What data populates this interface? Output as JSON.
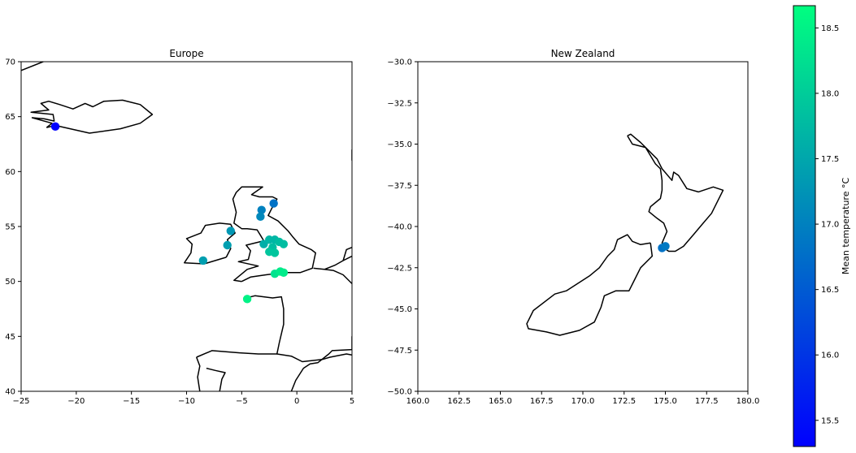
{
  "chart_data": [
    {
      "type": "scatter",
      "title": "Europe",
      "xlim": [
        -25,
        5
      ],
      "ylim": [
        40,
        70
      ],
      "x_ticks": [
        -25,
        -20,
        -15,
        -10,
        -5,
        0,
        5
      ],
      "y_ticks": [
        40,
        45,
        50,
        55,
        60,
        65,
        70
      ],
      "x_tick_labels": [
        "−25",
        "−20",
        "−15",
        "−10",
        "−5",
        "0",
        "5"
      ],
      "y_tick_labels": [
        "40",
        "45",
        "50",
        "55",
        "60",
        "65",
        "70"
      ],
      "points": [
        {
          "x": -21.9,
          "y": 64.1,
          "t": 15.3
        },
        {
          "x": -2.1,
          "y": 57.1,
          "t": 16.8
        },
        {
          "x": -3.2,
          "y": 56.5,
          "t": 17.0
        },
        {
          "x": -3.3,
          "y": 55.9,
          "t": 17.1
        },
        {
          "x": -6.0,
          "y": 54.6,
          "t": 17.3
        },
        {
          "x": -6.3,
          "y": 53.3,
          "t": 17.4
        },
        {
          "x": -8.5,
          "y": 51.9,
          "t": 17.4
        },
        {
          "x": -3.0,
          "y": 53.4,
          "t": 17.6
        },
        {
          "x": -2.5,
          "y": 53.8,
          "t": 17.7
        },
        {
          "x": -2.0,
          "y": 53.8,
          "t": 17.7
        },
        {
          "x": -1.6,
          "y": 53.6,
          "t": 17.8
        },
        {
          "x": -1.2,
          "y": 53.4,
          "t": 17.8
        },
        {
          "x": -2.2,
          "y": 53.1,
          "t": 17.8
        },
        {
          "x": -2.5,
          "y": 52.7,
          "t": 17.9
        },
        {
          "x": -2.0,
          "y": 52.6,
          "t": 17.9
        },
        {
          "x": -2.0,
          "y": 50.7,
          "t": 18.3
        },
        {
          "x": -1.5,
          "y": 50.9,
          "t": 18.4
        },
        {
          "x": -1.2,
          "y": 50.8,
          "t": 18.4
        },
        {
          "x": -4.5,
          "y": 48.4,
          "t": 18.5
        }
      ],
      "outlines": [
        [
          [
            -25,
            69.2
          ],
          [
            -23,
            70
          ],
          [
            -21.5,
            70.7
          ]
        ],
        [
          [
            -22.7,
            64
          ],
          [
            -21.9,
            64.2
          ],
          [
            -18.8,
            63.5
          ],
          [
            -16,
            63.9
          ],
          [
            -14.2,
            64.4
          ],
          [
            -13.1,
            65.2
          ],
          [
            -14.2,
            66.1
          ],
          [
            -15.8,
            66.5
          ],
          [
            -17.5,
            66.4
          ],
          [
            -18.5,
            65.9
          ],
          [
            -19.2,
            66.2
          ],
          [
            -20.3,
            65.7
          ],
          [
            -21.5,
            66.1
          ],
          [
            -22.5,
            66.4
          ],
          [
            -23.2,
            66.2
          ],
          [
            -22.5,
            65.6
          ],
          [
            -24.1,
            65.4
          ],
          [
            -22.1,
            65.2
          ],
          [
            -22.0,
            64.6
          ],
          [
            -22.9,
            64.8
          ],
          [
            -24,
            64.9
          ],
          [
            -22.2,
            64.4
          ],
          [
            -22.7,
            64
          ]
        ],
        [
          [
            -5.0,
            50.0
          ],
          [
            -4.2,
            50.4
          ],
          [
            -2.8,
            50.6
          ],
          [
            -1.2,
            50.8
          ],
          [
            0.3,
            50.8
          ],
          [
            1.4,
            51.2
          ],
          [
            1.7,
            52.6
          ],
          [
            1.3,
            52.9
          ],
          [
            0.2,
            53.4
          ],
          [
            -0.4,
            54.1
          ],
          [
            -0.8,
            54.6
          ],
          [
            -1.7,
            55.5
          ],
          [
            -2.6,
            56.0
          ],
          [
            -2.3,
            56.6
          ],
          [
            -1.8,
            57.5
          ],
          [
            -2.2,
            57.7
          ],
          [
            -3.4,
            57.7
          ],
          [
            -4.1,
            57.9
          ],
          [
            -3.1,
            58.6
          ],
          [
            -5.0,
            58.6
          ],
          [
            -5.5,
            58.1
          ],
          [
            -5.8,
            57.5
          ],
          [
            -5.5,
            56.3
          ],
          [
            -5.7,
            55.3
          ],
          [
            -5.0,
            54.8
          ],
          [
            -4.5,
            54.8
          ],
          [
            -3.6,
            54.7
          ],
          [
            -3.3,
            54.2
          ],
          [
            -3.0,
            53.7
          ],
          [
            -4.6,
            53.3
          ],
          [
            -4.2,
            52.8
          ],
          [
            -4.4,
            52.0
          ],
          [
            -5.3,
            51.8
          ],
          [
            -3.5,
            51.4
          ],
          [
            -4.5,
            51.1
          ],
          [
            -5.7,
            50.1
          ],
          [
            -5.0,
            50.0
          ]
        ],
        [
          [
            -6.4,
            52.2
          ],
          [
            -6.0,
            53.0
          ],
          [
            -6.3,
            53.8
          ],
          [
            -5.6,
            54.4
          ],
          [
            -6.0,
            55.2
          ],
          [
            -7.0,
            55.3
          ],
          [
            -8.3,
            55.1
          ],
          [
            -8.7,
            54.4
          ],
          [
            -10.0,
            53.9
          ],
          [
            -9.5,
            53.4
          ],
          [
            -9.6,
            52.6
          ],
          [
            -10.2,
            51.7
          ],
          [
            -8.4,
            51.6
          ],
          [
            -6.4,
            52.2
          ]
        ],
        [
          [
            -4.6,
            48.5
          ],
          [
            -3.8,
            48.7
          ],
          [
            -2.2,
            48.5
          ],
          [
            -1.4,
            48.6
          ],
          [
            -1.2,
            47.5
          ],
          [
            -1.2,
            46.1
          ],
          [
            -1.6,
            44.4
          ],
          [
            -1.8,
            43.4
          ],
          [
            -0.5,
            43.2
          ],
          [
            0.5,
            42.7
          ],
          [
            2.3,
            42.9
          ],
          [
            3.0,
            43.1
          ],
          [
            4.5,
            43.4
          ],
          [
            5,
            43.3
          ]
        ],
        [
          [
            1.5,
            51.2
          ],
          [
            2.5,
            51.1
          ],
          [
            3.5,
            51.5
          ],
          [
            4.2,
            51.9
          ],
          [
            5,
            52.3
          ]
        ],
        [
          [
            2.5,
            51.1
          ],
          [
            3.3,
            51.0
          ],
          [
            4.2,
            50.6
          ],
          [
            5,
            49.8
          ]
        ],
        [
          [
            5,
            53.1
          ],
          [
            4.5,
            52.9
          ],
          [
            4.2,
            51.9
          ]
        ],
        [
          [
            -9.1,
            43.1
          ],
          [
            -7.7,
            43.7
          ],
          [
            -5.2,
            43.5
          ],
          [
            -3.5,
            43.4
          ],
          [
            -1.8,
            43.4
          ]
        ],
        [
          [
            -9.1,
            43.1
          ],
          [
            -8.8,
            42.3
          ],
          [
            -9.0,
            41.3
          ],
          [
            -8.8,
            40.0
          ]
        ],
        [
          [
            -8.2,
            42.1
          ],
          [
            -7.4,
            41.9
          ],
          [
            -6.5,
            41.7
          ],
          [
            -6.8,
            41.1
          ],
          [
            -7.0,
            40.0
          ]
        ],
        [
          [
            5,
            45
          ],
          [
            5,
            43.8
          ],
          [
            3.2,
            43.7
          ],
          [
            2.9,
            43.4
          ],
          [
            1.9,
            42.6
          ],
          [
            1.2,
            42.5
          ],
          [
            0.6,
            42.1
          ],
          [
            -0.1,
            41.0
          ],
          [
            -0.5,
            40.0
          ]
        ],
        [
          [
            5,
            61
          ],
          [
            5,
            61.9
          ],
          [
            5,
            62
          ]
        ]
      ]
    },
    {
      "type": "scatter",
      "title": "New Zealand",
      "xlim": [
        160,
        180
      ],
      "ylim": [
        -50,
        -30
      ],
      "x_ticks": [
        160,
        162.5,
        165,
        167.5,
        170,
        172.5,
        175,
        177.5,
        180
      ],
      "y_ticks": [
        -50,
        -47.5,
        -45,
        -42.5,
        -40,
        -37.5,
        -35,
        -32.5,
        -30
      ],
      "x_tick_labels": [
        "160.0",
        "162.5",
        "165.0",
        "167.5",
        "170.0",
        "172.5",
        "175.0",
        "177.5",
        "180.0"
      ],
      "y_tick_labels": [
        "−50.0",
        "−47.5",
        "−45.0",
        "−42.5",
        "−40.0",
        "−37.5",
        "−35.0",
        "−32.5",
        "−30.0"
      ],
      "points": [
        {
          "x": 174.8,
          "y": -41.3,
          "t": 16.8
        },
        {
          "x": 175.0,
          "y": -41.2,
          "t": 16.9
        }
      ],
      "outlines": [
        [
          [
            172.7,
            -34.5
          ],
          [
            173.0,
            -35.0
          ],
          [
            173.8,
            -35.2
          ],
          [
            174.4,
            -36.2
          ],
          [
            174.7,
            -36.5
          ],
          [
            174.8,
            -37.2
          ],
          [
            174.8,
            -37.8
          ],
          [
            174.7,
            -38.3
          ],
          [
            174.1,
            -38.8
          ],
          [
            174.0,
            -39.1
          ],
          [
            174.5,
            -39.5
          ],
          [
            174.9,
            -39.8
          ],
          [
            175.1,
            -40.3
          ],
          [
            174.8,
            -41.0
          ],
          [
            174.9,
            -41.3
          ],
          [
            175.2,
            -41.5
          ],
          [
            175.6,
            -41.5
          ],
          [
            176.1,
            -41.2
          ],
          [
            176.7,
            -40.5
          ],
          [
            177.2,
            -39.9
          ],
          [
            177.8,
            -39.2
          ],
          [
            178.0,
            -38.8
          ],
          [
            178.5,
            -37.8
          ],
          [
            177.9,
            -37.6
          ],
          [
            177.0,
            -37.9
          ],
          [
            176.3,
            -37.7
          ],
          [
            175.8,
            -36.9
          ],
          [
            175.5,
            -36.7
          ],
          [
            175.4,
            -37.2
          ],
          [
            174.8,
            -36.5
          ],
          [
            174.5,
            -35.9
          ],
          [
            173.9,
            -35.3
          ],
          [
            173.5,
            -34.9
          ],
          [
            172.9,
            -34.4
          ],
          [
            172.7,
            -34.5
          ]
        ],
        [
          [
            174.1,
            -41.0
          ],
          [
            174.2,
            -41.8
          ],
          [
            173.5,
            -42.5
          ],
          [
            173.1,
            -43.3
          ],
          [
            172.8,
            -43.9
          ],
          [
            172.0,
            -43.9
          ],
          [
            171.3,
            -44.2
          ],
          [
            171.1,
            -44.9
          ],
          [
            170.7,
            -45.8
          ],
          [
            169.8,
            -46.3
          ],
          [
            168.6,
            -46.6
          ],
          [
            167.8,
            -46.4
          ],
          [
            166.7,
            -46.2
          ],
          [
            166.6,
            -45.9
          ],
          [
            167.0,
            -45.1
          ],
          [
            168.3,
            -44.1
          ],
          [
            169.0,
            -43.9
          ],
          [
            170.4,
            -43.0
          ],
          [
            171.0,
            -42.5
          ],
          [
            171.5,
            -41.8
          ],
          [
            171.9,
            -41.4
          ],
          [
            172.1,
            -40.8
          ],
          [
            172.7,
            -40.5
          ],
          [
            173.0,
            -40.9
          ],
          [
            173.5,
            -41.1
          ],
          [
            174.1,
            -41.0
          ]
        ]
      ]
    }
  ],
  "colorbar": {
    "label": "Mean temperature °C",
    "min": 15.3,
    "max": 18.67,
    "ticks": [
      15.5,
      16.0,
      16.5,
      17.0,
      17.5,
      18.0,
      18.5
    ],
    "tick_labels": [
      "15.5",
      "16.0",
      "16.5",
      "17.0",
      "17.5",
      "18.0",
      "18.5"
    ],
    "colormap": "winter",
    "color_low": "#0000ff",
    "color_high": "#00ff80"
  }
}
